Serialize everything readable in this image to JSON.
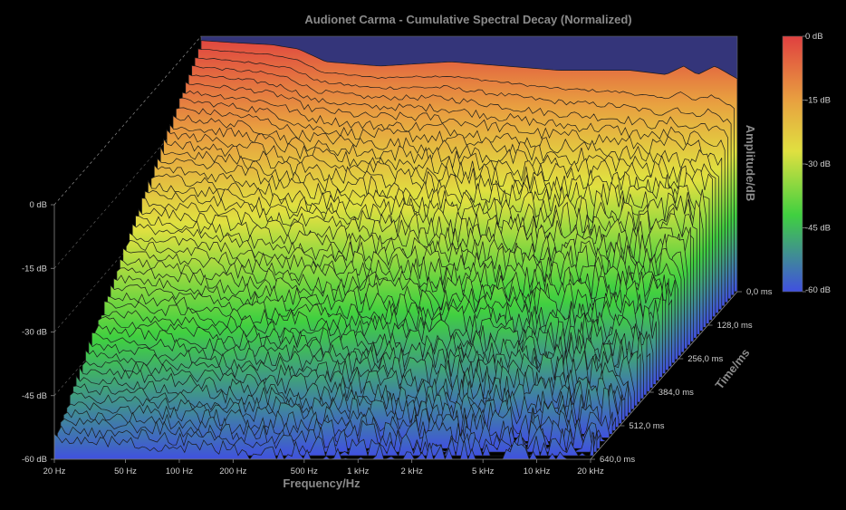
{
  "chart_data": {
    "type": "waterfall",
    "title": "Audionet Carma - Cumulative Spectral Decay (Normalized)",
    "xlabel": "Frequency/Hz",
    "ylabel": "Amplitude/dB",
    "zlabel": "Time/ms",
    "x_scale": "log",
    "x_range": [
      20,
      20000
    ],
    "y_range": [
      -60,
      0
    ],
    "time_range_ms": [
      0,
      640
    ],
    "x_ticks": [
      {
        "value": 20,
        "label": "20 Hz"
      },
      {
        "value": 50,
        "label": "50 Hz"
      },
      {
        "value": 100,
        "label": "100 Hz"
      },
      {
        "value": 200,
        "label": "200 Hz"
      },
      {
        "value": 500,
        "label": "500 Hz"
      },
      {
        "value": 1000,
        "label": "1 kHz"
      },
      {
        "value": 2000,
        "label": "2 kHz"
      },
      {
        "value": 5000,
        "label": "5 kHz"
      },
      {
        "value": 10000,
        "label": "10 kHz"
      },
      {
        "value": 20000,
        "label": "20 kHz"
      }
    ],
    "y_ticks": [
      {
        "value": 0,
        "label": "0 dB"
      },
      {
        "value": -15,
        "label": "-15 dB"
      },
      {
        "value": -30,
        "label": "-30 dB"
      },
      {
        "value": -45,
        "label": "-45 dB"
      },
      {
        "value": -60,
        "label": "-60 dB"
      }
    ],
    "time_ticks": [
      {
        "value": 0,
        "label": "0,0 ms"
      },
      {
        "value": 128,
        "label": "128,0 ms"
      },
      {
        "value": 256,
        "label": "256,0 ms"
      },
      {
        "value": 384,
        "label": "384,0 ms"
      },
      {
        "value": 512,
        "label": "512,0 ms"
      },
      {
        "value": 640,
        "label": "640,0 ms"
      }
    ],
    "colorbar": {
      "labels": [
        "0 dB",
        "-15 dB",
        "-30 dB",
        "-45 dB",
        "-60 dB"
      ],
      "colors": [
        "#e04040",
        "#e8a040",
        "#e0e040",
        "#40d040",
        "#4050e0"
      ]
    },
    "slice_count": 48,
    "initial_response_db": [
      {
        "hz": 20,
        "db": -1
      },
      {
        "hz": 30,
        "db": -1.5
      },
      {
        "hz": 50,
        "db": -2
      },
      {
        "hz": 70,
        "db": -3
      },
      {
        "hz": 100,
        "db": -6
      },
      {
        "hz": 200,
        "db": -7
      },
      {
        "hz": 500,
        "db": -6
      },
      {
        "hz": 1000,
        "db": -7
      },
      {
        "hz": 2000,
        "db": -8
      },
      {
        "hz": 5000,
        "db": -8
      },
      {
        "hz": 8000,
        "db": -9
      },
      {
        "hz": 10000,
        "db": -7
      },
      {
        "hz": 12000,
        "db": -9
      },
      {
        "hz": 15000,
        "db": -7
      },
      {
        "hz": 20000,
        "db": -10
      }
    ],
    "decay_end_db": [
      {
        "hz": 20,
        "db": -55
      },
      {
        "hz": 100,
        "db": -57
      },
      {
        "hz": 1000,
        "db": -59
      },
      {
        "hz": 20000,
        "db": -60
      }
    ]
  }
}
